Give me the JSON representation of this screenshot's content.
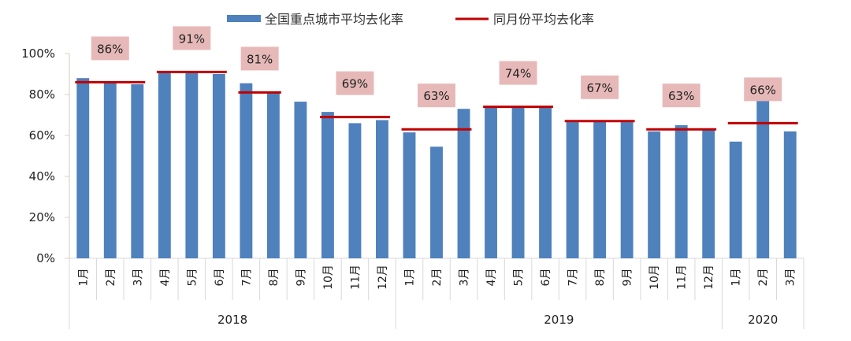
{
  "chart_data": {
    "type": "bar",
    "title": "",
    "xlabel": "",
    "ylabel": "",
    "ylim": [
      0,
      100
    ],
    "yticks": [
      "0%",
      "20%",
      "40%",
      "60%",
      "80%",
      "100%"
    ],
    "ytick_values": [
      0,
      20,
      40,
      60,
      80,
      100
    ],
    "grid": false,
    "legend_position": "top",
    "categories": [
      "1月",
      "2月",
      "3月",
      "4月",
      "5月",
      "6月",
      "7月",
      "8月",
      "9月",
      "10月",
      "11月",
      "12月",
      "1月",
      "2月",
      "3月",
      "4月",
      "5月",
      "6月",
      "7月",
      "8月",
      "9月",
      "10月",
      "11月",
      "12月",
      "1月",
      "2月",
      "3月"
    ],
    "year_groups": [
      {
        "label": "2018",
        "count": 12
      },
      {
        "label": "2019",
        "count": 12
      },
      {
        "label": "2020",
        "count": 3
      }
    ],
    "series": [
      {
        "name": "全国重点城市平均去化率",
        "type": "bar",
        "color": "#4F81BD",
        "values": [
          88,
          86,
          85,
          91.5,
          91,
          90,
          85.5,
          81,
          76.5,
          71.5,
          66,
          67.5,
          61.5,
          54.5,
          73,
          74,
          74,
          73.5,
          66.5,
          67,
          66.5,
          62,
          65,
          63,
          57,
          80,
          62
        ]
      },
      {
        "name": "同月份平均去化率",
        "type": "segment",
        "color": "#C00000",
        "segments": [
          {
            "start": 0,
            "end": 2,
            "value": 86,
            "label": "86%"
          },
          {
            "start": 3,
            "end": 5,
            "value": 91,
            "label": "91%"
          },
          {
            "start": 6,
            "end": 7,
            "value": 81,
            "label": "81%"
          },
          {
            "start": 9,
            "end": 11,
            "value": 69,
            "label": "69%"
          },
          {
            "start": 12,
            "end": 14,
            "value": 63,
            "label": "63%"
          },
          {
            "start": 15,
            "end": 17,
            "value": 74,
            "label": "74%"
          },
          {
            "start": 18,
            "end": 20,
            "value": 67,
            "label": "67%"
          },
          {
            "start": 21,
            "end": 23,
            "value": 63,
            "label": "63%"
          },
          {
            "start": 24,
            "end": 26,
            "value": 66,
            "label": "66%"
          }
        ]
      }
    ],
    "annotation_box_color": "#E6B9B8"
  }
}
